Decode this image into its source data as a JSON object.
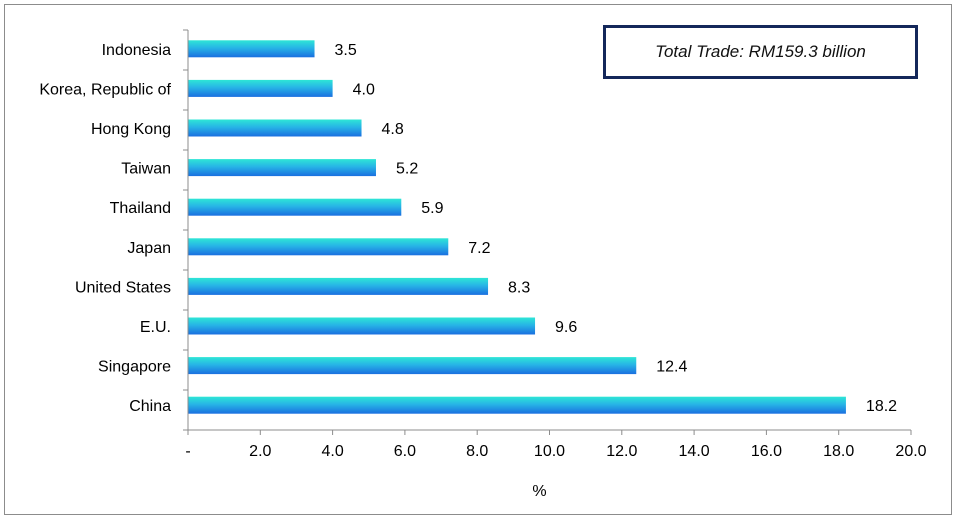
{
  "chart_data": {
    "type": "bar",
    "orientation": "horizontal",
    "categories": [
      "Indonesia",
      "Korea, Republic of",
      "Hong Kong",
      "Taiwan",
      "Thailand",
      "Japan",
      "United States",
      "E.U.",
      "Singapore",
      "China"
    ],
    "values": [
      3.5,
      4.0,
      4.8,
      5.2,
      5.9,
      7.2,
      8.3,
      9.6,
      12.4,
      18.2
    ],
    "value_labels": [
      "3.5",
      "4.0",
      "4.8",
      "5.2",
      "5.9",
      "7.2",
      "8.3",
      "9.6",
      "12.4",
      "18.2"
    ],
    "xlabel": "%",
    "xlim": [
      0,
      20
    ],
    "x_ticks": [
      0,
      2,
      4,
      6,
      8,
      10,
      12,
      14,
      16,
      18,
      20
    ],
    "x_tick_labels": [
      "-",
      "2.0",
      "4.0",
      "6.0",
      "8.0",
      "10.0",
      "12.0",
      "14.0",
      "16.0",
      "18.0",
      "20.0"
    ],
    "grid": false,
    "bar_color_top": "#2ee6d6",
    "bar_color_bottom": "#1a6fe0",
    "annotation": "Total Trade: RM159.3 billion"
  }
}
